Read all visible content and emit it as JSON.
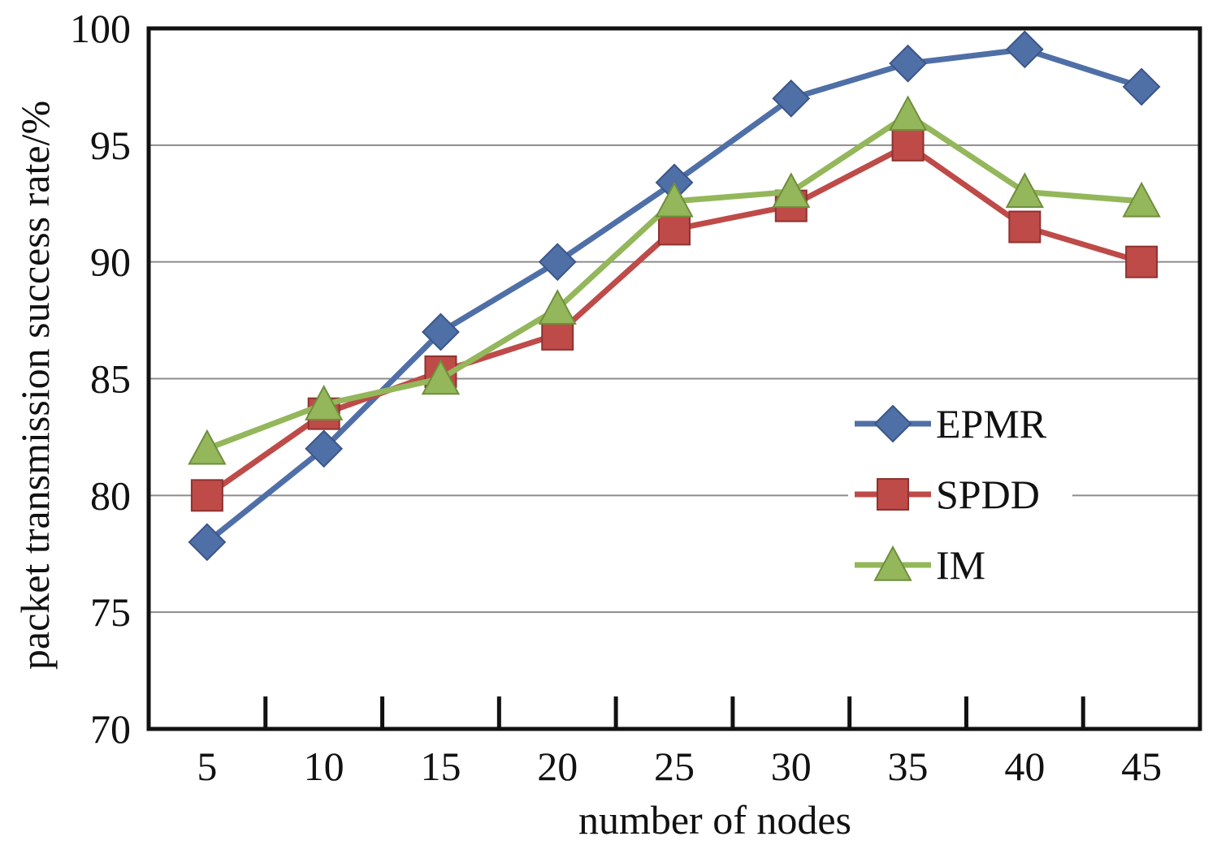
{
  "chart_data": {
    "type": "line",
    "xlabel": "number of nodes",
    "ylabel": "packet transmission success rate/%",
    "categories": [
      "5",
      "10",
      "15",
      "20",
      "25",
      "30",
      "35",
      "40",
      "45"
    ],
    "x": [
      5,
      10,
      15,
      20,
      25,
      30,
      35,
      40,
      45
    ],
    "yticks": [
      "70",
      "75",
      "80",
      "85",
      "90",
      "95",
      "100"
    ],
    "ylim": [
      70,
      100
    ],
    "grid": "horizontal",
    "legend_position": "right",
    "series": [
      {
        "name": "EPMR",
        "color": "#4f6fa7",
        "edge": "#3b5688",
        "marker": "diamond",
        "values": [
          78,
          82,
          87,
          90,
          93.4,
          97,
          98.5,
          99.1,
          97.5
        ]
      },
      {
        "name": "SPDD",
        "color": "#be4b48",
        "edge": "#8e3230",
        "marker": "square",
        "values": [
          80,
          83.5,
          85.3,
          86.9,
          91.4,
          92.4,
          95,
          91.5,
          90
        ]
      },
      {
        "name": "IM",
        "color": "#93b75a",
        "edge": "#6f8e3c",
        "marker": "triangle",
        "values": [
          82,
          83.9,
          85,
          88,
          92.6,
          93,
          96.3,
          93,
          92.6
        ]
      }
    ]
  }
}
